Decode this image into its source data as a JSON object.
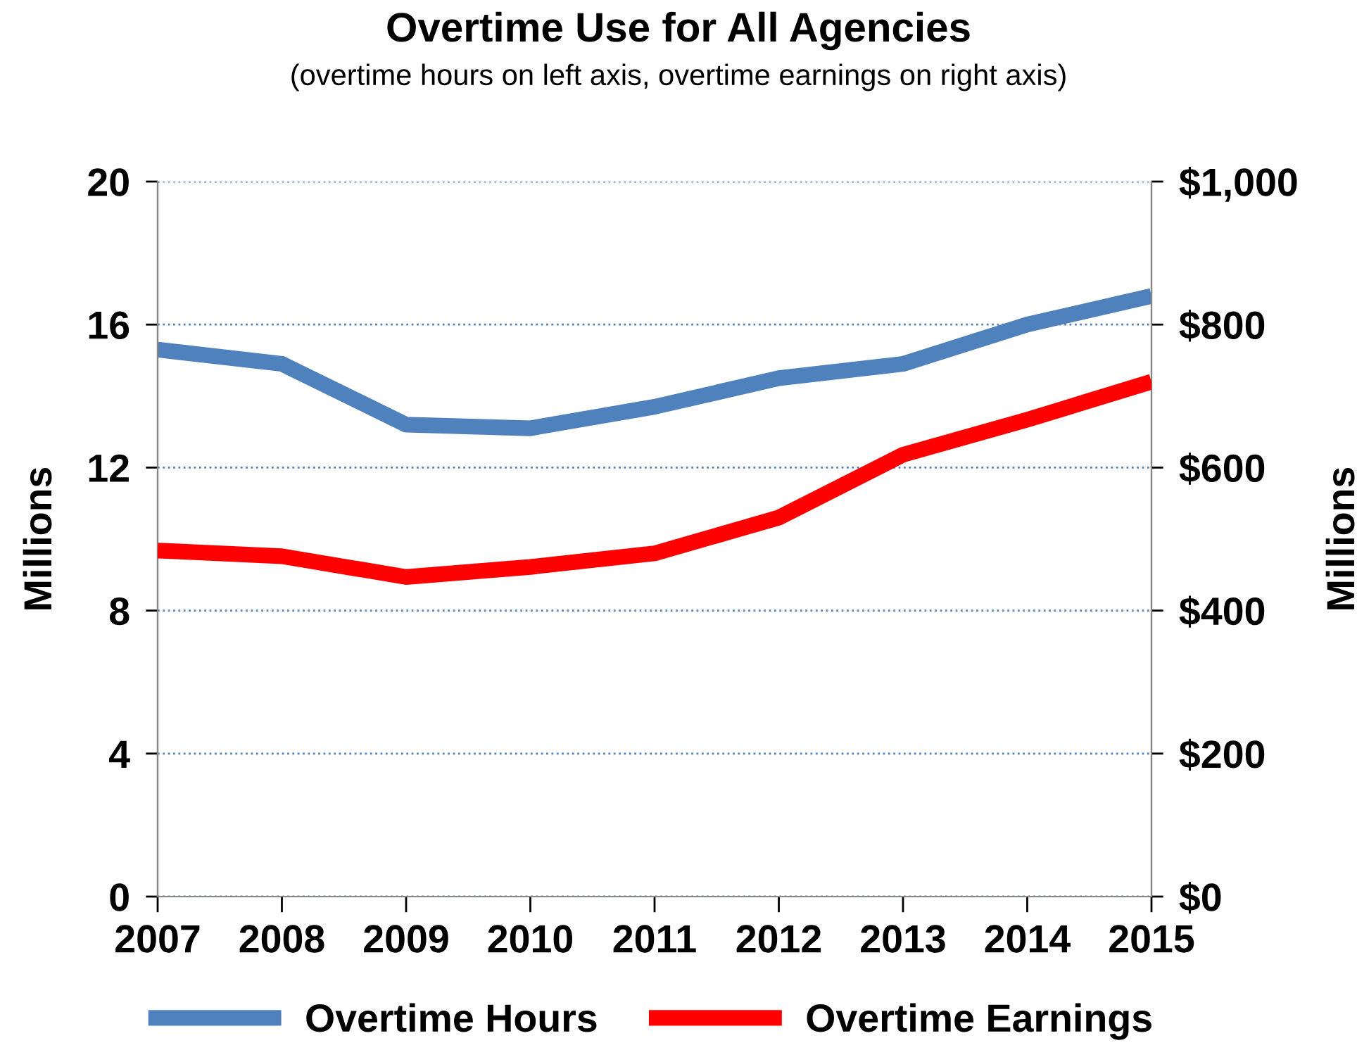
{
  "chart_data": {
    "type": "line",
    "title": "Overtime Use for All Agencies",
    "subtitle": "(overtime hours on left axis, overtime earnings on right axis)",
    "ylabel": "Millions",
    "y2label": "Millions",
    "categories": [
      "2007",
      "2008",
      "2009",
      "2010",
      "2011",
      "2012",
      "2013",
      "2014",
      "2015"
    ],
    "series": [
      {
        "name": "Overtime Hours",
        "color": "#4f81bd",
        "values": [
          15.3,
          14.9,
          13.2,
          13.1,
          13.7,
          14.5,
          14.9,
          16.0,
          16.8
        ]
      },
      {
        "name": "Overtime Earnings",
        "color": "#ff0000",
        "axis": "y2",
        "values": [
          484,
          476,
          447,
          461,
          480,
          530,
          618,
          667,
          720
        ]
      }
    ],
    "ylim": [
      0,
      20
    ],
    "yticks": [
      0,
      4,
      8,
      12,
      16,
      20
    ],
    "y2lim": [
      0,
      1000
    ],
    "y2ticks": [
      {
        "value": 0,
        "label": "$0"
      },
      {
        "value": 200,
        "label": "$200"
      },
      {
        "value": 400,
        "label": "$400"
      },
      {
        "value": 600,
        "label": "$600"
      },
      {
        "value": 800,
        "label": "$800"
      },
      {
        "value": 1000,
        "label": "$1,000"
      }
    ],
    "grid": "y",
    "legend": "bottom",
    "marker": "none",
    "line_style": "solid"
  }
}
